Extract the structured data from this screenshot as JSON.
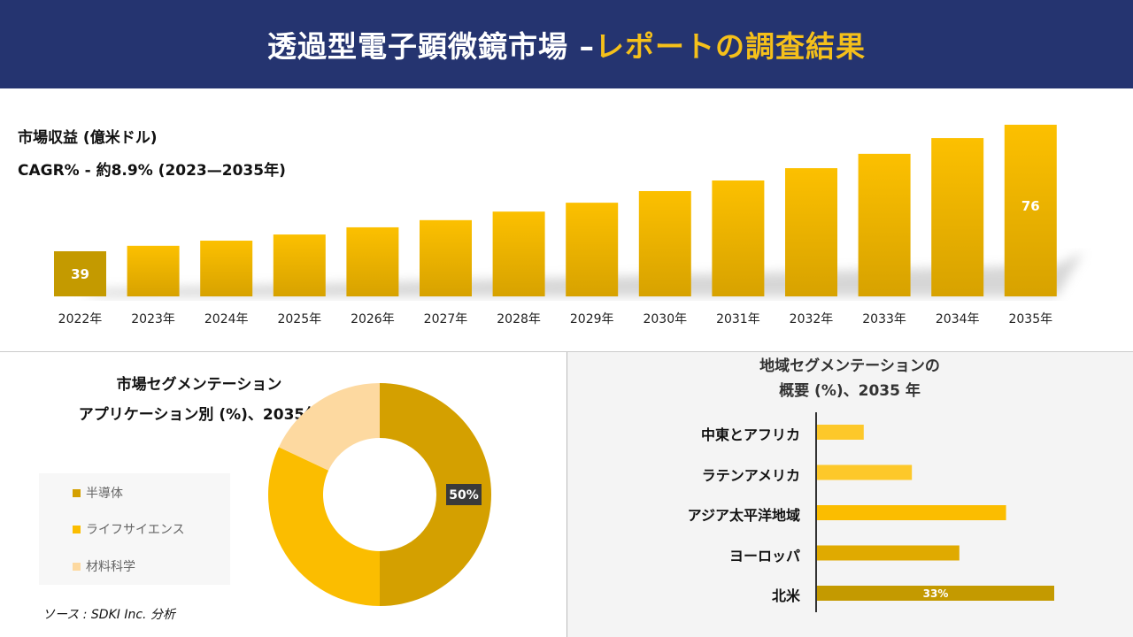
{
  "header": {
    "title_part1": "透過型電子顕微鏡",
    "title_part2": "市場 –",
    "title_part3": "レポートの調査結果"
  },
  "revenue": {
    "label": "市場収益 (億米ドル)",
    "cagr": "CAGR% - 約8.9% (2023—2035年)"
  },
  "segment": {
    "title_line1": "市場セグメンテーション",
    "title_line2": "アプリケーション別 (%)、2035年"
  },
  "region": {
    "title_line1": "地域セグメンテーションの",
    "title_line2": "概要 (%)、2035 年"
  },
  "source": "ソース : SDKI Inc. 分析",
  "colors": {
    "header": "#253470",
    "accent": "#f5c01a",
    "bar_dark": "#c49a00",
    "bar": "#fbbd00",
    "semiconductor": "#d4a000",
    "life_science": "#fbbd00",
    "material_science": "#fdd9a0"
  },
  "chart_data": [
    {
      "type": "bar",
      "categories": [
        "2022年",
        "2023年",
        "2024年",
        "2025年",
        "2026年",
        "2027年",
        "2028年",
        "2029年",
        "2030年",
        "2031年",
        "2032年",
        "2033年",
        "2034年",
        "2035年"
      ],
      "values": [
        39,
        40.6,
        42.1,
        43.9,
        46.0,
        48.1,
        50.6,
        53.2,
        56.6,
        59.7,
        63.3,
        67.5,
        72.1,
        76
      ],
      "data_labels": {
        "0": "39",
        "13": "76"
      },
      "grid": false
    },
    {
      "type": "pie",
      "donut": true,
      "slices": [
        {
          "name": "半導体",
          "value": 50,
          "label": "50%"
        },
        {
          "name": "ライフサイエンス",
          "value": 32
        },
        {
          "name": "材料科学",
          "value": 18
        }
      ],
      "legend": "left"
    },
    {
      "type": "bar",
      "orientation": "horizontal",
      "categories": [
        "中東とアフリカ",
        "ラテンアメリカ",
        "アジア太平洋地域",
        "ヨーロッパ",
        "北米"
      ],
      "values": [
        6.5,
        13.2,
        26.3,
        19.8,
        33
      ],
      "data_labels": {
        "4": "33%"
      }
    }
  ]
}
